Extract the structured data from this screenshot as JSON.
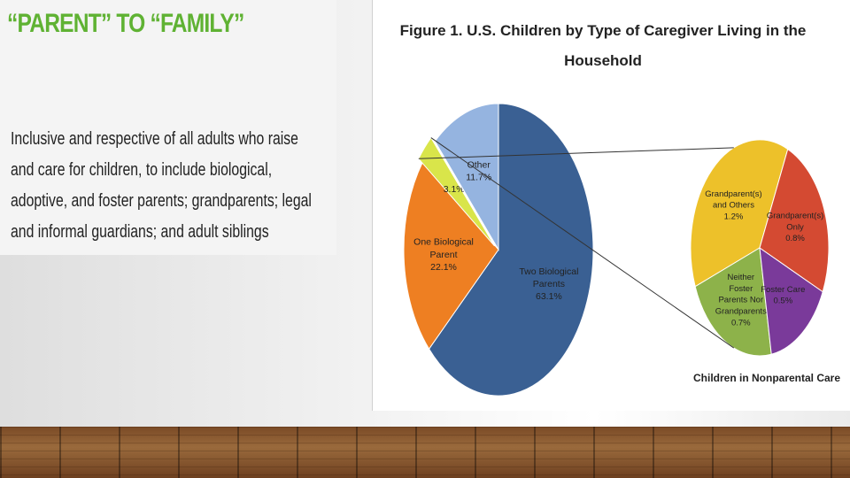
{
  "slide": {
    "title": "“PARENT” TO “FAMILY”",
    "body": "Inclusive and respective of all adults who raise and care for children, to include biological, adoptive, and foster parents; grandparents; legal and informal guardians; and adult siblings"
  },
  "chart_data": [
    {
      "type": "pie",
      "title": "Figure 1.  U.S. Children by Type of Caregiver Living in the Household",
      "slices": [
        {
          "label": "Two Biological Parents",
          "value": 63.1,
          "display": "63.1%",
          "color": "#3a6093"
        },
        {
          "label": "One Biological Parent",
          "value": 22.1,
          "display": "22.1%",
          "color": "#ee7f22"
        },
        {
          "label": "",
          "value": 3.1,
          "display": "3.1%",
          "color": "#d9e54a"
        },
        {
          "label": "Other",
          "value": 11.7,
          "display": "11.7%",
          "color": "#95b4e0"
        }
      ],
      "exploded_slice": "3.1%"
    },
    {
      "type": "pie",
      "title": "Children in Nonparental Care",
      "slices": [
        {
          "label": "Grandparent(s) and Others",
          "value": 1.2,
          "display": "1.2%",
          "color": "#edc12a"
        },
        {
          "label": "Neither Foster Parents Nor Grandparents",
          "value": 0.7,
          "display": "0.7%",
          "color": "#8db24a"
        },
        {
          "label": "Foster Care",
          "value": 0.5,
          "display": "0.5%",
          "color": "#7a3a9a"
        },
        {
          "label": "Grandparent(s) Only",
          "value": 0.8,
          "display": "0.8%",
          "color": "#d44a32"
        }
      ]
    }
  ]
}
